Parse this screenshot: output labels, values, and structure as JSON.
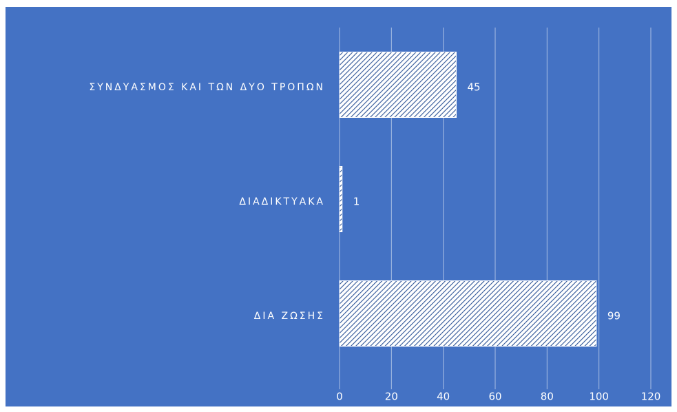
{
  "chart_data": {
    "type": "hbar",
    "categories": [
      "ΣΥΝΔΥΑΣΜΟΣ ΚΑΙ ΤΩΝ ΔΥΟ ΤΡΟΠΩΝ",
      "ΔΙΑΔΙΚΤΥΑΚΑ",
      "ΔΙΑ ΖΩΣΗΣ"
    ],
    "values": [
      45,
      1,
      99
    ],
    "color": "#ffffff",
    "background": "#4472c4",
    "xlim": [
      0,
      120
    ],
    "xticks": [
      0,
      20,
      40,
      60,
      80,
      100,
      120
    ],
    "grid": true
  }
}
